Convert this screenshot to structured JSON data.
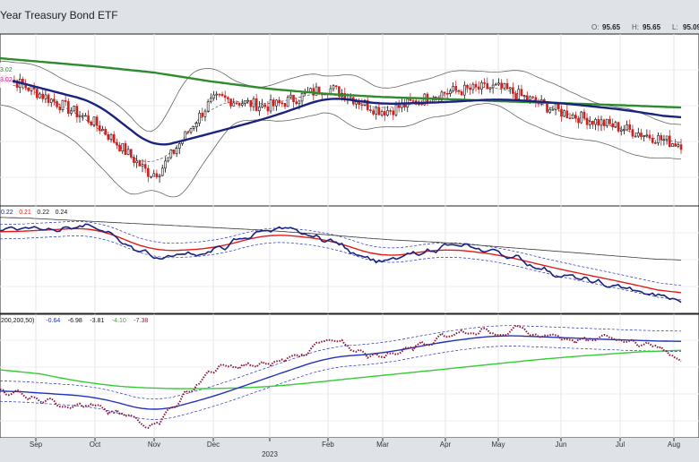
{
  "header": {
    "title": "Year Treasury Bond ETF",
    "ohlc": [
      {
        "label": "O:",
        "value": "95.65"
      },
      {
        "label": "H:",
        "value": "95.65"
      },
      {
        "label": "L:",
        "value": "95.09"
      },
      {
        "label": "V:",
        "value": ""
      }
    ]
  },
  "colors": {
    "candle_up": "#111111",
    "candle_down": "#d21e1e",
    "ma_long": "#2e8b2e",
    "ma_mid": "#1a237e",
    "bands": "#666666",
    "ppo_red": "#e41a1a",
    "pmo_dots": "#8b1a3c",
    "pmo_signal": "#2233bb",
    "pmo_green": "#33cc33"
  },
  "panels": {
    "price": {
      "legend": [
        {
          "text": "3.02",
          "color": "#2e8b2e"
        },
        {
          "text": "3.02",
          "color": "#cc3399"
        }
      ]
    },
    "middle": {
      "legend": [
        {
          "text": "0.22",
          "color": "#1a237e"
        },
        {
          "text": "0.21",
          "color": "#e41a1a"
        },
        {
          "text": "0.22",
          "color": "#111111"
        },
        {
          "text": "0.24",
          "color": "#111111"
        }
      ]
    },
    "bottom": {
      "legend": [
        {
          "text": "200,200,50)",
          "color": "#111111"
        },
        {
          "text": "-0.64",
          "color": "#2233bb"
        },
        {
          "text": "-6.98",
          "color": "#111111"
        },
        {
          "text": "-3.81",
          "color": "#111111"
        },
        {
          "text": "-4.10",
          "color": "#33aa33"
        },
        {
          "text": "-7.38",
          "color": "#8b1a3c"
        }
      ]
    }
  },
  "xaxis": {
    "months": [
      "Sep",
      "Oct",
      "Nov",
      "Dec",
      "2023",
      "Feb",
      "Mar",
      "Apr",
      "May",
      "Jun",
      "Jul",
      "Aug"
    ]
  },
  "chart_data": [
    {
      "type": "line",
      "panel": "price",
      "title": "Year Treasury Bond ETF",
      "x": [
        "Sep",
        "Oct",
        "Nov",
        "Dec",
        "2023",
        "Feb",
        "Mar",
        "Apr",
        "May",
        "Jun",
        "Jul",
        "Aug"
      ],
      "series": [
        {
          "values": [
            100.5,
            97.5,
            92.0,
            100.0,
            99.0,
            101.0,
            98.5,
            100.5,
            101.0,
            98.5,
            97.0,
            95.5
          ]
        },
        {
          "values": [
            103.5,
            103.0,
            102.4,
            101.5,
            100.8,
            100.3,
            100.0,
            99.8,
            99.6,
            99.4,
            99.2,
            99.0
          ]
        },
        {
          "values": [
            101.0,
            99.5,
            95.0,
            96.5,
            98.0,
            100.0,
            99.3,
            99.5,
            99.8,
            99.4,
            98.8,
            98.0
          ]
        }
      ]
    },
    {
      "type": "line",
      "panel": "middle",
      "x": [
        "Sep",
        "Oct",
        "Nov",
        "Dec",
        "2023",
        "Feb",
        "Mar",
        "Apr",
        "May",
        "Jun",
        "Jul",
        "Aug"
      ],
      "series": [
        {
          "values": [
            0.27,
            0.27,
            0.22,
            0.23,
            0.27,
            0.25,
            0.21,
            0.24,
            0.23,
            0.19,
            0.17,
            0.15
          ]
        },
        {
          "values": [
            0.265,
            0.27,
            0.23,
            0.235,
            0.26,
            0.25,
            0.22,
            0.235,
            0.225,
            0.2,
            0.18,
            0.16
          ]
        },
        {
          "values": [
            0.285,
            0.28,
            0.275,
            0.27,
            0.265,
            0.258,
            0.25,
            0.245,
            0.238,
            0.23,
            0.222,
            0.215
          ]
        }
      ]
    },
    {
      "type": "line",
      "panel": "bottom",
      "x": [
        "Sep",
        "Oct",
        "Nov",
        "Dec",
        "2023",
        "Feb",
        "Mar",
        "Apr",
        "May",
        "Jun",
        "Jul",
        "Aug"
      ],
      "series": [
        {
          "values": [
            -6.0,
            -7.5,
            -9.5,
            -2.5,
            -2.0,
            1.0,
            -1.0,
            2.0,
            2.5,
            1.5,
            1.5,
            -0.5
          ]
        },
        {
          "values": [
            -5.5,
            -6.0,
            -8.0,
            -6.0,
            -3.5,
            -1.0,
            -0.5,
            1.0,
            1.8,
            1.5,
            1.2,
            1.0
          ]
        },
        {
          "values": [
            -3.0,
            -4.5,
            -5.0,
            -5.0,
            -4.8,
            -4.0,
            -3.3,
            -2.5,
            -1.8,
            -1.0,
            -0.5,
            0.0
          ]
        }
      ]
    }
  ]
}
